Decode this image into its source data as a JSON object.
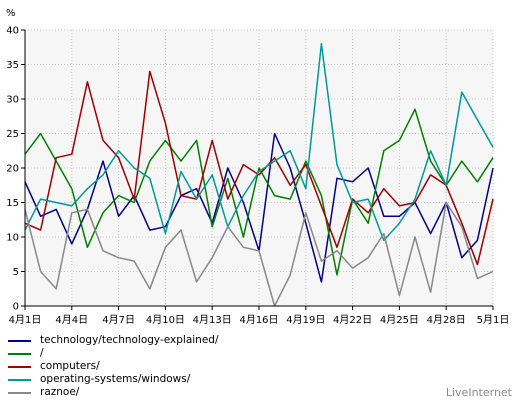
{
  "chart_data": {
    "type": "line",
    "ylabel": "%",
    "ylim": [
      0,
      40
    ],
    "yticks": [
      0,
      5,
      10,
      15,
      20,
      25,
      30,
      35,
      40
    ],
    "x_count": 31,
    "xtick_labels": [
      "4月1日",
      "4月4日",
      "4月7日",
      "4月10日",
      "4月13日",
      "4月16日",
      "4月19日",
      "4月22日",
      "4月25日",
      "4月28日",
      "5月1日"
    ],
    "xtick_positions": [
      0,
      3,
      6,
      9,
      12,
      15,
      18,
      21,
      24,
      27,
      30
    ],
    "grid": true,
    "legend_position": "bottom-left",
    "series": [
      {
        "name": "technology/technology-explained/",
        "color": "#00008b",
        "values": [
          18,
          13,
          14,
          9,
          14,
          21,
          13,
          16,
          11,
          11.5,
          16,
          17,
          12,
          20,
          15,
          8,
          25,
          20,
          12,
          3.5,
          18.5,
          18,
          20,
          13,
          13,
          15,
          10.5,
          15,
          7,
          9.5,
          20
        ]
      },
      {
        "name": "/",
        "color": "#008000",
        "values": [
          22,
          25,
          21,
          17,
          8.5,
          13.5,
          16,
          15,
          21,
          24,
          21,
          24,
          11.5,
          18.5,
          10,
          20,
          16,
          15.5,
          21,
          16,
          4.5,
          15.5,
          12,
          22.5,
          24,
          28.5,
          21,
          17.5,
          21,
          18,
          21.5
        ]
      },
      {
        "name": "computers/",
        "color": "#a00000",
        "values": [
          12,
          11,
          21.5,
          22,
          32.5,
          24,
          21.5,
          15.5,
          34,
          26.5,
          16,
          15.5,
          24,
          15.5,
          20.5,
          19,
          21.5,
          17.5,
          20.5,
          14.5,
          8.5,
          15.5,
          13.5,
          17,
          14.5,
          15,
          19,
          17.5,
          12,
          6,
          15.5
        ]
      },
      {
        "name": "operating-systems/windows/",
        "color": "#009999",
        "values": [
          11,
          15.5,
          15,
          14.5,
          17,
          19,
          22.5,
          20,
          18.5,
          10.5,
          19.5,
          15.5,
          19,
          11.5,
          16,
          19.5,
          21,
          22.5,
          17,
          38,
          20.5,
          15,
          15.5,
          9.5,
          12,
          15.5,
          22.5,
          17.5,
          31,
          27,
          23
        ]
      },
      {
        "name": "raznoe/",
        "color": "#888888",
        "values": [
          14,
          5,
          2.5,
          13.5,
          14,
          8,
          7,
          6.5,
          2.5,
          8.5,
          11,
          3.5,
          7,
          11.5,
          8.5,
          8,
          0,
          4.5,
          13.5,
          6.5,
          8,
          5.5,
          7,
          10.5,
          1.5,
          10,
          2,
          15,
          11.5,
          4,
          5
        ]
      }
    ]
  },
  "brand": "LiveInternet"
}
